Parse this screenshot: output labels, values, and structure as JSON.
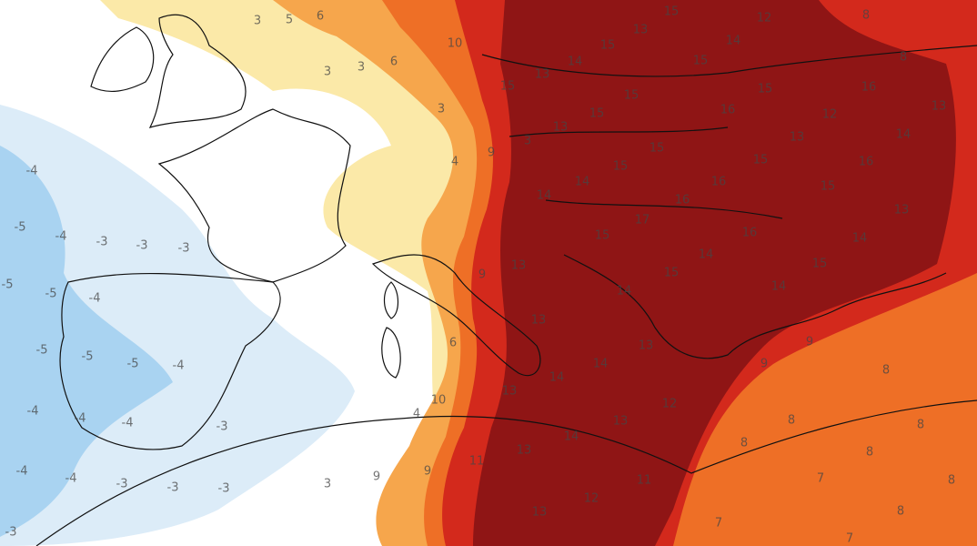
{
  "labels": [
    3,
    5,
    6,
    3,
    6,
    3,
    10,
    3,
    4,
    9,
    15,
    13,
    14,
    15,
    13,
    15,
    15,
    14,
    12,
    15,
    8,
    8,
    12,
    16,
    14,
    13,
    15,
    15,
    13,
    3,
    15,
    15,
    16,
    13,
    15,
    16,
    15,
    13,
    14,
    15,
    14,
    16,
    16,
    17,
    14,
    14,
    15,
    16,
    14,
    15,
    14,
    13,
    9,
    6,
    10,
    4,
    3,
    9,
    9,
    11,
    13,
    13,
    14,
    14,
    13,
    12,
    13,
    14,
    13,
    12,
    11,
    13,
    8,
    9,
    9,
    8,
    8,
    8,
    8,
    7,
    8,
    7,
    8,
    7,
    -4,
    -5,
    -4,
    -3,
    -3,
    -3,
    -5,
    -5,
    -4,
    -5,
    -5,
    -5,
    -4,
    -4,
    -4,
    -4,
    -3,
    -4,
    -4,
    -3,
    -3,
    -3,
    -3
  ]
}
